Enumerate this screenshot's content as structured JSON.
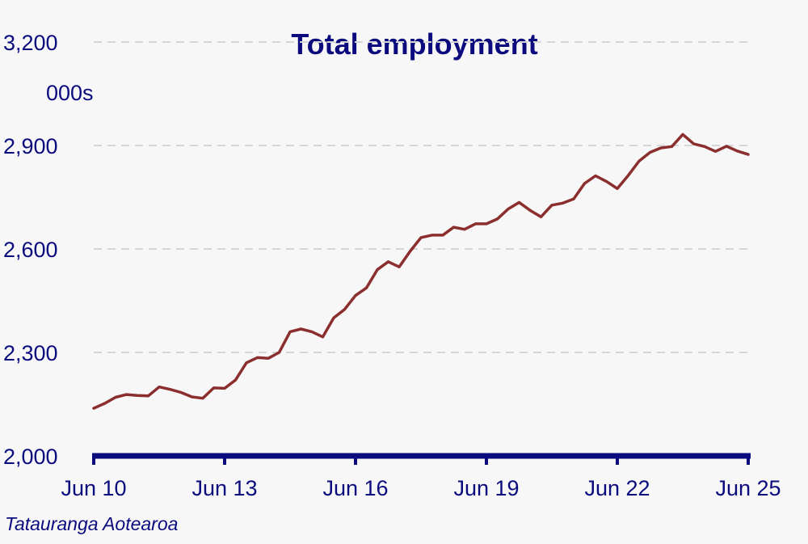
{
  "chart_data": {
    "type": "line",
    "title": "Total employment",
    "unit_label": "000s",
    "source": "Tatauranga Aotearoa",
    "ylim": [
      2000,
      3200
    ],
    "yticks": [
      2000,
      2300,
      2600,
      2900,
      3200
    ],
    "ytick_labels": [
      "2,000",
      "2,300",
      "2,600",
      "2,900",
      "3,200"
    ],
    "xticks": [
      "2010-06",
      "2013-06",
      "2016-06",
      "2019-06",
      "2022-06",
      "2025-06"
    ],
    "xtick_labels": [
      "Jun 10",
      "Jun 13",
      "Jun 16",
      "Jun 19",
      "Jun 22",
      "Jun 25"
    ],
    "grid": true,
    "line_color": "#8b2e2e",
    "axis_color": "#0b0b7e",
    "x": [
      "2010-06",
      "2010-09",
      "2010-12",
      "2011-03",
      "2011-06",
      "2011-09",
      "2011-12",
      "2012-03",
      "2012-06",
      "2012-09",
      "2012-12",
      "2013-03",
      "2013-06",
      "2013-09",
      "2013-12",
      "2014-03",
      "2014-06",
      "2014-09",
      "2014-12",
      "2015-03",
      "2015-06",
      "2015-09",
      "2015-12",
      "2016-03",
      "2016-06",
      "2016-09",
      "2016-12",
      "2017-03",
      "2017-06",
      "2017-09",
      "2017-12",
      "2018-03",
      "2018-06",
      "2018-09",
      "2018-12",
      "2019-03",
      "2019-06",
      "2019-09",
      "2019-12",
      "2020-03",
      "2020-06",
      "2020-09",
      "2020-12",
      "2021-03",
      "2021-06",
      "2021-09",
      "2021-12",
      "2022-03",
      "2022-06",
      "2022-09",
      "2022-12",
      "2023-03",
      "2023-06",
      "2023-09",
      "2023-12",
      "2024-03",
      "2024-06",
      "2024-09",
      "2024-12",
      "2025-03",
      "2025-06"
    ],
    "series": [
      {
        "values": [
          2138,
          2152,
          2170,
          2178,
          2175,
          2174,
          2200,
          2193,
          2184,
          2171,
          2167,
          2197,
          2196,
          2220,
          2270,
          2285,
          2283,
          2300,
          2360,
          2368,
          2360,
          2345,
          2400,
          2425,
          2465,
          2487,
          2540,
          2563,
          2548,
          2593,
          2633,
          2640,
          2640,
          2663,
          2657,
          2673,
          2673,
          2687,
          2716,
          2735,
          2712,
          2693,
          2727,
          2733,
          2745,
          2790,
          2812,
          2796,
          2775,
          2813,
          2855,
          2880,
          2893,
          2897,
          2932,
          2905,
          2897,
          2883,
          2898,
          2884,
          2874
        ]
      }
    ]
  }
}
